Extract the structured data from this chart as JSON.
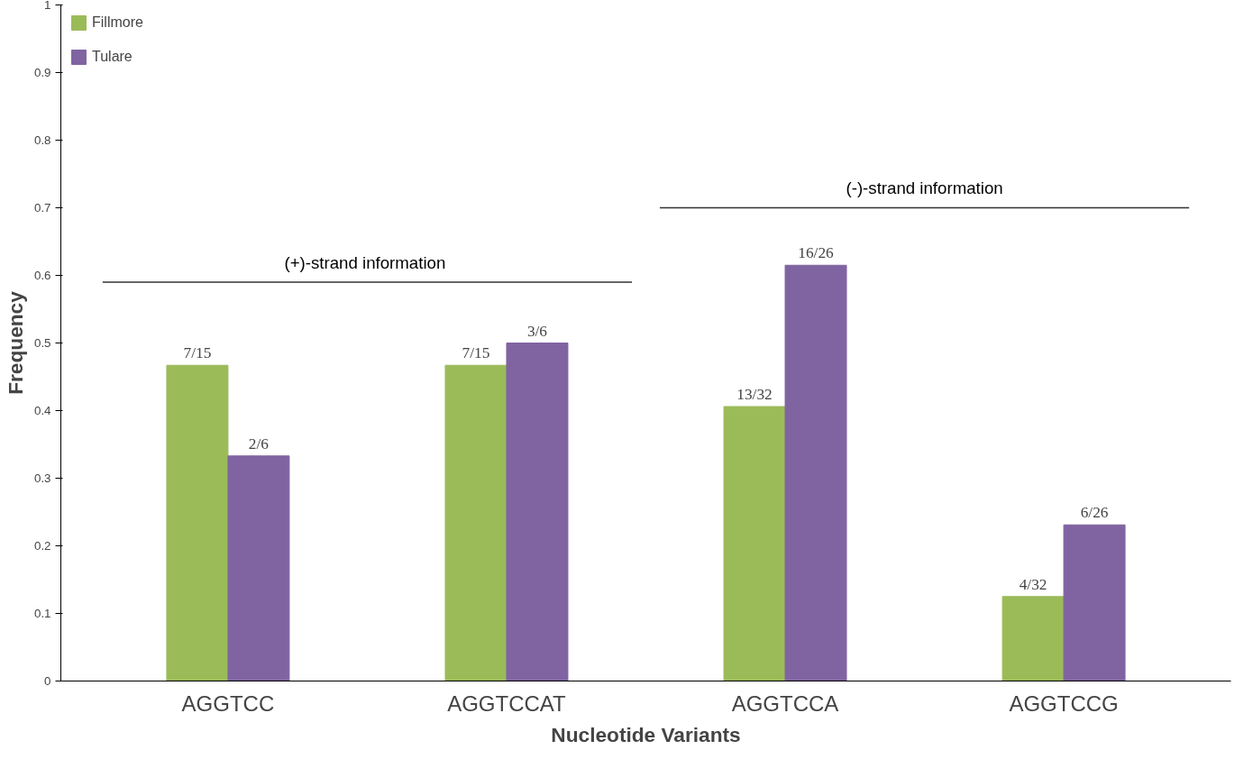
{
  "chart_data": {
    "type": "bar",
    "xlabel": "Nucleotide Variants",
    "ylabel": "Frequency",
    "categories": [
      "AGGTCC",
      "AGGTCCAT",
      "AGGTCCA",
      "AGGTCCG"
    ],
    "series": [
      {
        "name": "Fillmore",
        "color": "#9bbb59",
        "values": [
          0.467,
          0.467,
          0.406,
          0.125
        ],
        "value_labels": [
          "7/15",
          "7/15",
          "13/32",
          "4/32"
        ]
      },
      {
        "name": "Tulare",
        "color": "#8064a2",
        "values": [
          0.333,
          0.5,
          0.615,
          0.231
        ],
        "value_labels": [
          "2/6",
          "3/6",
          "16/26",
          "6/26"
        ]
      }
    ],
    "ref_lines": [
      {
        "axis": "y",
        "value": 0.59,
        "label": "(+)-strand  information",
        "color": "#333333"
      },
      {
        "axis": "y",
        "value": 0.7,
        "label": "(-)-strand information",
        "color": "#333333"
      }
    ],
    "ylim": [
      0,
      1
    ],
    "yticks": [
      0,
      0.1,
      0.2,
      0.3,
      0.4,
      0.5,
      0.6,
      0.7,
      0.8,
      0.9,
      1
    ],
    "grid": false,
    "legend": "top left"
  }
}
